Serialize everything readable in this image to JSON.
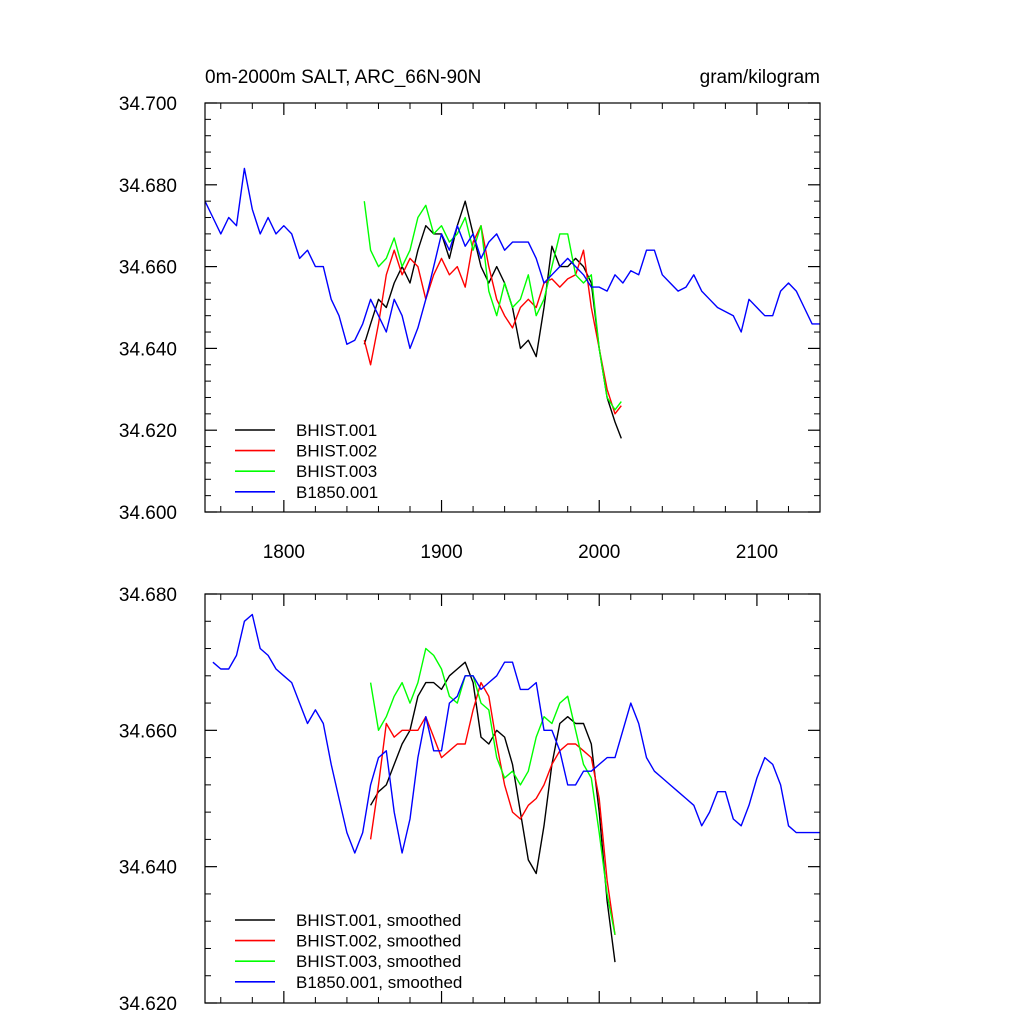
{
  "chart_data": [
    {
      "type": "line",
      "title_left": "0m-2000m SALT, ARC_66N-90N",
      "title_right": "gram/kilogram",
      "xlabel": "",
      "ylabel": "",
      "xlim": [
        1750,
        2140
      ],
      "ylim": [
        34.6,
        34.7
      ],
      "x_ticks": [
        1800,
        1900,
        2000,
        2100
      ],
      "x_tick_labels": [
        "1800",
        "1900",
        "2000",
        "2100"
      ],
      "y_ticks": [
        34.6,
        34.62,
        34.64,
        34.66,
        34.68,
        34.7
      ],
      "y_tick_labels": [
        "34.600",
        "34.620",
        "34.640",
        "34.660",
        "34.680",
        "34.700"
      ],
      "legend_position": "bottom-left",
      "series": [
        {
          "name": "BHIST.001",
          "color": "#000000",
          "x": [
            1851,
            1855,
            1860,
            1865,
            1870,
            1875,
            1880,
            1885,
            1890,
            1895,
            1900,
            1905,
            1910,
            1915,
            1920,
            1925,
            1930,
            1935,
            1940,
            1945,
            1950,
            1955,
            1960,
            1965,
            1970,
            1975,
            1980,
            1985,
            1990,
            1995,
            2000,
            2005,
            2010,
            2014
          ],
          "y": [
            34.641,
            34.646,
            34.652,
            34.65,
            34.656,
            34.66,
            34.656,
            34.664,
            34.67,
            34.668,
            34.668,
            34.662,
            34.67,
            34.676,
            34.668,
            34.66,
            34.656,
            34.66,
            34.656,
            34.65,
            34.64,
            34.642,
            34.638,
            34.65,
            34.665,
            34.66,
            34.66,
            34.662,
            34.66,
            34.656,
            34.64,
            34.628,
            34.622,
            34.618
          ]
        },
        {
          "name": "BHIST.002",
          "color": "#ff0000",
          "x": [
            1851,
            1855,
            1860,
            1865,
            1870,
            1875,
            1880,
            1885,
            1890,
            1895,
            1900,
            1905,
            1910,
            1915,
            1920,
            1925,
            1930,
            1935,
            1940,
            1945,
            1950,
            1955,
            1960,
            1965,
            1970,
            1975,
            1980,
            1985,
            1990,
            1995,
            2000,
            2005,
            2010,
            2014
          ],
          "y": [
            34.642,
            34.636,
            34.646,
            34.658,
            34.664,
            34.658,
            34.662,
            34.66,
            34.652,
            34.658,
            34.662,
            34.658,
            34.66,
            34.655,
            34.666,
            34.67,
            34.66,
            34.652,
            34.648,
            34.645,
            34.65,
            34.652,
            34.65,
            34.656,
            34.657,
            34.655,
            34.657,
            34.658,
            34.664,
            34.65,
            34.64,
            34.63,
            34.624,
            34.626
          ]
        },
        {
          "name": "BHIST.003",
          "color": "#00ff00",
          "x": [
            1851,
            1855,
            1860,
            1865,
            1870,
            1875,
            1880,
            1885,
            1890,
            1895,
            1900,
            1905,
            1910,
            1915,
            1920,
            1925,
            1930,
            1935,
            1940,
            1945,
            1950,
            1955,
            1960,
            1965,
            1970,
            1975,
            1980,
            1985,
            1990,
            1995,
            2000,
            2005,
            2010,
            2014
          ],
          "y": [
            34.676,
            34.664,
            34.66,
            34.662,
            34.667,
            34.66,
            34.664,
            34.672,
            34.675,
            34.668,
            34.67,
            34.666,
            34.668,
            34.672,
            34.664,
            34.67,
            34.654,
            34.648,
            34.656,
            34.65,
            34.652,
            34.658,
            34.648,
            34.652,
            34.66,
            34.668,
            34.668,
            34.658,
            34.656,
            34.658,
            34.64,
            34.628,
            34.625,
            34.627
          ]
        },
        {
          "name": "B1850.001",
          "color": "#0000ff",
          "x": [
            1750,
            1755,
            1760,
            1765,
            1770,
            1775,
            1780,
            1785,
            1790,
            1795,
            1800,
            1805,
            1810,
            1815,
            1820,
            1825,
            1830,
            1835,
            1840,
            1845,
            1850,
            1855,
            1860,
            1865,
            1870,
            1875,
            1880,
            1885,
            1890,
            1895,
            1900,
            1905,
            1910,
            1915,
            1920,
            1925,
            1930,
            1935,
            1940,
            1945,
            1950,
            1955,
            1960,
            1965,
            1970,
            1975,
            1980,
            1985,
            1990,
            1995,
            2000,
            2005,
            2010,
            2015,
            2020,
            2025,
            2030,
            2035,
            2040,
            2045,
            2050,
            2055,
            2060,
            2065,
            2070,
            2075,
            2080,
            2085,
            2090,
            2095,
            2100,
            2105,
            2110,
            2115,
            2120,
            2125,
            2130,
            2135,
            2140
          ],
          "y": [
            34.676,
            34.672,
            34.668,
            34.672,
            34.67,
            34.684,
            34.674,
            34.668,
            34.672,
            34.668,
            34.67,
            34.668,
            34.662,
            34.664,
            34.66,
            34.66,
            34.652,
            34.648,
            34.641,
            34.642,
            34.646,
            34.652,
            34.648,
            34.644,
            34.652,
            34.648,
            34.64,
            34.645,
            34.652,
            34.66,
            34.668,
            34.664,
            34.67,
            34.665,
            34.668,
            34.662,
            34.666,
            34.668,
            34.664,
            34.666,
            34.666,
            34.666,
            34.662,
            34.656,
            34.658,
            34.66,
            34.662,
            34.66,
            34.658,
            34.655,
            34.655,
            34.654,
            34.658,
            34.656,
            34.659,
            34.658,
            34.664,
            34.664,
            34.658,
            34.656,
            34.654,
            34.655,
            34.658,
            34.654,
            34.652,
            34.65,
            34.649,
            34.648,
            34.644,
            34.652,
            34.65,
            34.648,
            34.648,
            34.654,
            34.656,
            34.654,
            34.65,
            34.646,
            34.646
          ]
        }
      ]
    },
    {
      "type": "line",
      "xlim": [
        1750,
        2140
      ],
      "ylim": [
        34.62,
        34.68
      ],
      "x_ticks": [
        1800,
        1900,
        2000,
        2100
      ],
      "y_ticks": [
        34.62,
        34.64,
        34.66,
        34.68
      ],
      "y_tick_labels": [
        "34.620",
        "34.640",
        "34.660",
        "34.680"
      ],
      "legend_position": "bottom-left",
      "series": [
        {
          "name": "BHIST.001, smoothed",
          "color": "#000000",
          "x": [
            1855,
            1860,
            1865,
            1870,
            1875,
            1880,
            1885,
            1890,
            1895,
            1900,
            1905,
            1910,
            1915,
            1920,
            1925,
            1930,
            1935,
            1940,
            1945,
            1950,
            1955,
            1960,
            1965,
            1970,
            1975,
            1980,
            1985,
            1990,
            1995,
            2000,
            2005,
            2010
          ],
          "y": [
            34.649,
            34.651,
            34.652,
            34.655,
            34.658,
            34.66,
            34.665,
            34.667,
            34.667,
            34.666,
            34.668,
            34.669,
            34.67,
            34.667,
            34.659,
            34.658,
            34.66,
            34.659,
            34.655,
            34.648,
            34.641,
            34.639,
            34.646,
            34.655,
            34.661,
            34.662,
            34.661,
            34.661,
            34.658,
            34.648,
            34.635,
            34.626
          ]
        },
        {
          "name": "BHIST.002, smoothed",
          "color": "#ff0000",
          "x": [
            1855,
            1860,
            1865,
            1870,
            1875,
            1880,
            1885,
            1890,
            1895,
            1900,
            1905,
            1910,
            1915,
            1920,
            1925,
            1930,
            1935,
            1940,
            1945,
            1950,
            1955,
            1960,
            1965,
            1970,
            1975,
            1980,
            1985,
            1990,
            1995,
            2000,
            2005,
            2010
          ],
          "y": [
            34.644,
            34.652,
            34.661,
            34.659,
            34.66,
            34.66,
            34.66,
            34.662,
            34.659,
            34.656,
            34.657,
            34.658,
            34.658,
            34.663,
            34.667,
            34.665,
            34.658,
            34.652,
            34.648,
            34.647,
            34.649,
            34.65,
            34.652,
            34.655,
            34.657,
            34.658,
            34.658,
            34.657,
            34.656,
            34.65,
            34.638,
            34.63
          ]
        },
        {
          "name": "BHIST.003, smoothed",
          "color": "#00ff00",
          "x": [
            1855,
            1860,
            1865,
            1870,
            1875,
            1880,
            1885,
            1890,
            1895,
            1900,
            1905,
            1910,
            1915,
            1920,
            1925,
            1930,
            1935,
            1940,
            1945,
            1950,
            1955,
            1960,
            1965,
            1970,
            1975,
            1980,
            1985,
            1990,
            1995,
            2000,
            2005,
            2010
          ],
          "y": [
            34.667,
            34.66,
            34.662,
            34.665,
            34.667,
            34.664,
            34.667,
            34.672,
            34.671,
            34.669,
            34.665,
            34.664,
            34.668,
            34.668,
            34.664,
            34.663,
            34.656,
            34.653,
            34.654,
            34.652,
            34.654,
            34.659,
            34.662,
            34.661,
            34.664,
            34.665,
            34.66,
            34.655,
            34.653,
            34.645,
            34.636,
            34.63
          ]
        },
        {
          "name": "B1850.001, smoothed",
          "color": "#0000ff",
          "x": [
            1755,
            1760,
            1765,
            1770,
            1775,
            1780,
            1785,
            1790,
            1795,
            1800,
            1805,
            1810,
            1815,
            1820,
            1825,
            1830,
            1835,
            1840,
            1845,
            1850,
            1855,
            1860,
            1865,
            1870,
            1875,
            1880,
            1885,
            1890,
            1895,
            1900,
            1905,
            1910,
            1915,
            1920,
            1925,
            1930,
            1935,
            1940,
            1945,
            1950,
            1955,
            1960,
            1965,
            1970,
            1975,
            1980,
            1985,
            1990,
            1995,
            2000,
            2005,
            2010,
            2015,
            2020,
            2025,
            2030,
            2035,
            2040,
            2045,
            2050,
            2055,
            2060,
            2065,
            2070,
            2075,
            2080,
            2085,
            2090,
            2095,
            2100,
            2105,
            2110,
            2115,
            2120,
            2125,
            2130,
            2135,
            2140
          ],
          "y": [
            34.67,
            34.669,
            34.669,
            34.671,
            34.676,
            34.677,
            34.672,
            34.671,
            34.669,
            34.668,
            34.667,
            34.664,
            34.661,
            34.663,
            34.661,
            34.655,
            34.65,
            34.645,
            34.642,
            34.645,
            34.652,
            34.656,
            34.657,
            34.648,
            34.642,
            34.647,
            34.656,
            34.662,
            34.657,
            34.657,
            34.664,
            34.665,
            34.668,
            34.668,
            34.666,
            34.667,
            34.668,
            34.67,
            34.67,
            34.666,
            34.666,
            34.667,
            34.66,
            34.66,
            34.657,
            34.652,
            34.652,
            34.654,
            34.654,
            34.655,
            34.656,
            34.656,
            34.66,
            34.664,
            34.661,
            34.656,
            34.654,
            34.653,
            34.652,
            34.651,
            34.65,
            34.649,
            34.646,
            34.648,
            34.651,
            34.651,
            34.647,
            34.646,
            34.649,
            34.653,
            34.656,
            34.655,
            34.652,
            34.646,
            34.645,
            34.645,
            34.645,
            34.645
          ]
        }
      ]
    }
  ]
}
